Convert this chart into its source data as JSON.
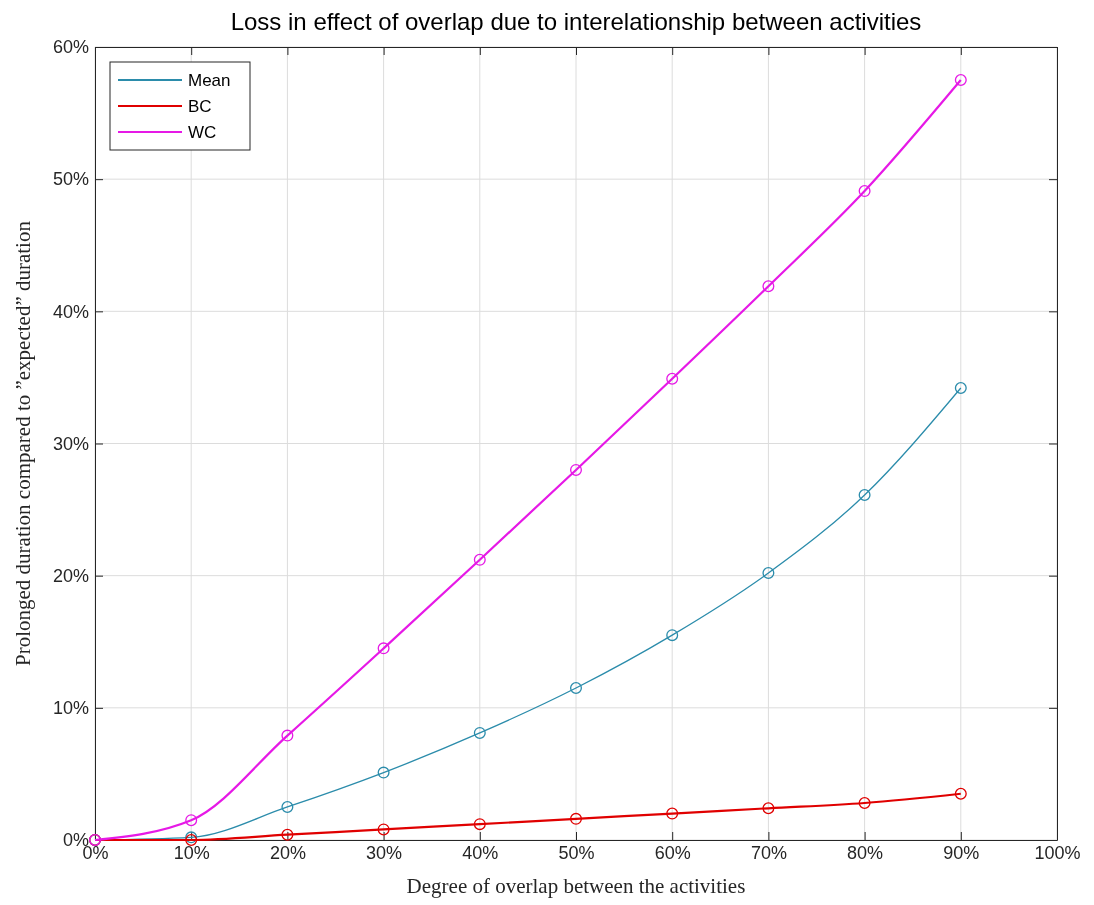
{
  "chart_data": {
    "type": "line",
    "title": "Loss in effect of overlap due to interelationship between activities",
    "xlabel": "Degree of overlap between the activities",
    "ylabel": "Prolonged duration compared to ”expected” duration",
    "x": [
      0,
      10,
      20,
      30,
      40,
      50,
      60,
      70,
      80,
      90
    ],
    "series": [
      {
        "name": "Mean",
        "color": "#2b8cab",
        "values": [
          0,
          0.2,
          2.5,
          5.1,
          8.1,
          11.5,
          15.5,
          20.2,
          26.1,
          34.2
        ]
      },
      {
        "name": "BC",
        "color": "#e00000",
        "values": [
          0,
          0,
          0.4,
          0.8,
          1.2,
          1.6,
          2.0,
          2.4,
          2.8,
          3.5
        ]
      },
      {
        "name": "WC",
        "color": "#e619e6",
        "values": [
          0,
          1.5,
          7.9,
          14.5,
          21.2,
          28.0,
          34.9,
          41.9,
          49.1,
          57.5
        ]
      }
    ],
    "xlim": [
      0,
      100
    ],
    "ylim": [
      0,
      60
    ],
    "xticks": [
      {
        "value": 0,
        "label": "0%"
      },
      {
        "value": 10,
        "label": "10%"
      },
      {
        "value": 20,
        "label": "20%"
      },
      {
        "value": 30,
        "label": "30%"
      },
      {
        "value": 40,
        "label": "40%"
      },
      {
        "value": 50,
        "label": "50%"
      },
      {
        "value": 60,
        "label": "60%"
      },
      {
        "value": 70,
        "label": "70%"
      },
      {
        "value": 80,
        "label": "80%"
      },
      {
        "value": 90,
        "label": "90%"
      },
      {
        "value": 100,
        "label": "100%"
      }
    ],
    "yticks": [
      {
        "value": 0,
        "label": "0%"
      },
      {
        "value": 10,
        "label": "10%"
      },
      {
        "value": 20,
        "label": "20%"
      },
      {
        "value": 30,
        "label": "30%"
      },
      {
        "value": 40,
        "label": "40%"
      },
      {
        "value": 50,
        "label": "50%"
      },
      {
        "value": 60,
        "label": "60%"
      }
    ],
    "grid": true,
    "legend": "top left",
    "marker": "circle",
    "line_style": "solid"
  }
}
